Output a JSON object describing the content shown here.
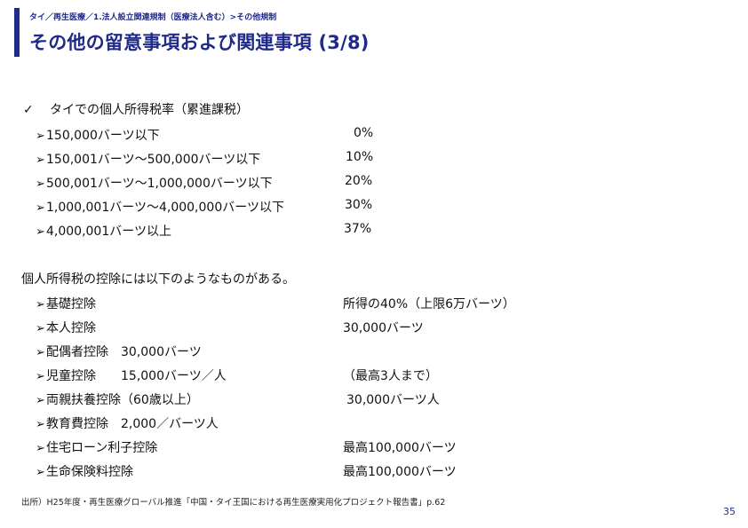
{
  "header": {
    "breadcrumb": "タイ／再生医療／1.法人設立関連規制（医療法人含む）>その他規制",
    "title": "その他の留意事項および関連事項 (3/8)"
  },
  "tax": {
    "check_icon": "✓",
    "heading": "タイでの個人所得税率（累進課税）",
    "rows": [
      {
        "arrow": "➢",
        "label": "150,000バーツ以下",
        "rate": "0%"
      },
      {
        "arrow": "➢",
        "label": "150,001バーツ～500,000バーツ以下",
        "rate": "10%"
      },
      {
        "arrow": "➢",
        "label": "500,001バーツ～1,000,000バーツ以下",
        "rate": "20%"
      },
      {
        "arrow": "➢",
        "label": "1,000,001バーツ～4,000,000バーツ以下",
        "rate": "30%"
      },
      {
        "arrow": "➢",
        "label": "4,000,001バーツ以上",
        "rate": "37%"
      }
    ]
  },
  "deductions": {
    "heading": "個人所得税の控除には以下のようなものがある。",
    "rows": [
      {
        "arrow": "➢",
        "label": "基礎控除",
        "value": "所得の40%（上限6万バーツ）"
      },
      {
        "arrow": "➢",
        "label": "本人控除",
        "value": "30,000バーツ"
      },
      {
        "arrow": "➢",
        "label": "配偶者控除　30,000バーツ",
        "value": ""
      },
      {
        "arrow": "➢",
        "label": "児童控除　　15,000バーツ／人",
        "value": "（最高3人まで）"
      },
      {
        "arrow": "➢",
        "label": "両親扶養控除（60歳以上）",
        "value": "30,000バーツ人"
      },
      {
        "arrow": "➢",
        "label": "教育費控除　2,000／バーツ人",
        "value": ""
      },
      {
        "arrow": "➢",
        "label": "住宅ローン利子控除",
        "value": "最高100,000バーツ"
      },
      {
        "arrow": "➢",
        "label": "生命保険料控除",
        "value": "最高100,000バーツ"
      }
    ]
  },
  "footer": {
    "source": "出所）H25年度・再生医療グローバル推進「中国・タイ王国における再生医療実用化プロジェクト報告書」p.62",
    "page_number": "35"
  }
}
